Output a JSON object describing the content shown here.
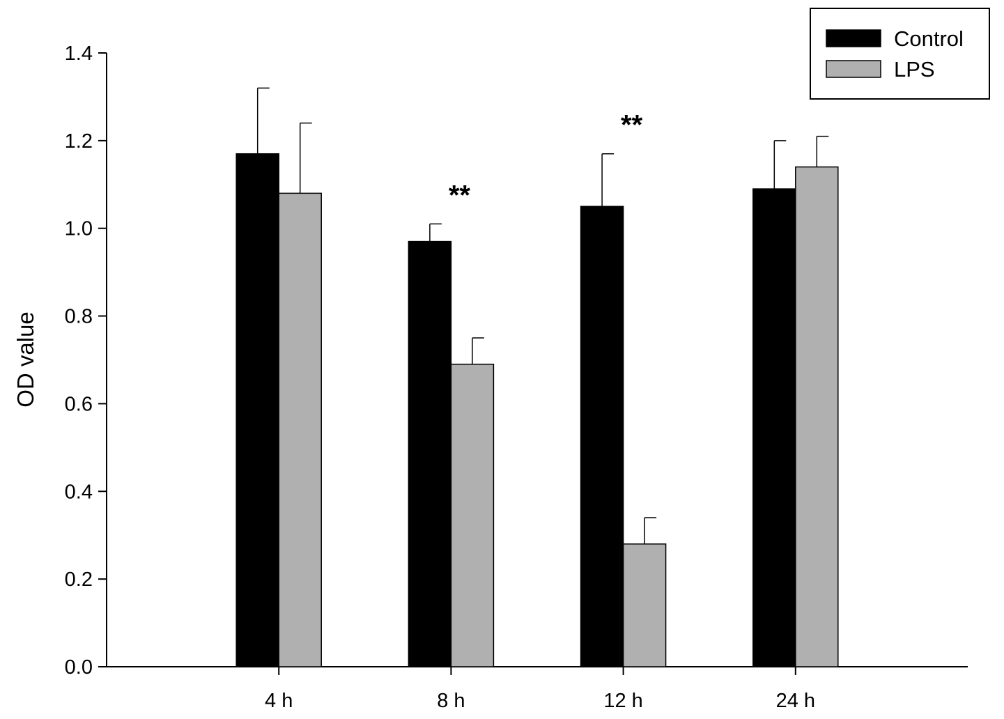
{
  "chart_data": {
    "type": "bar",
    "title": "",
    "xlabel": "",
    "ylabel": "OD value",
    "ylim": [
      0,
      1.4
    ],
    "yticks": [
      "0.0",
      "0.2",
      "0.4",
      "0.6",
      "0.8",
      "1.0",
      "1.2",
      "1.4"
    ],
    "categories": [
      "4 h",
      "8 h",
      "12 h",
      "24 h"
    ],
    "series": [
      {
        "name": "Control",
        "color": "#000000",
        "values": [
          1.17,
          0.97,
          1.05,
          1.09
        ],
        "errors": [
          0.15,
          0.04,
          0.12,
          0.11
        ]
      },
      {
        "name": "LPS",
        "color": "#b0b0b0",
        "values": [
          1.08,
          0.69,
          0.28,
          1.14
        ],
        "errors": [
          0.16,
          0.06,
          0.06,
          0.07
        ]
      }
    ],
    "annotations": [
      {
        "category": "8 h",
        "text": "**"
      },
      {
        "category": "12 h",
        "text": "**"
      }
    ],
    "legend": "top-right",
    "grid": false
  }
}
